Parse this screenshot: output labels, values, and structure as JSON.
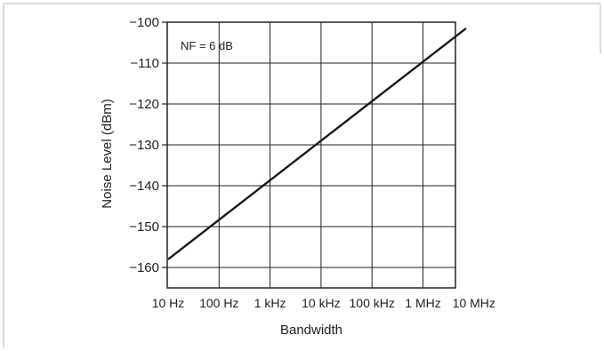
{
  "chart_data": {
    "type": "line",
    "xlabel": "Bandwidth",
    "ylabel": "Noise Level (dBm)",
    "annotation": "NF = 6 dB",
    "x_scale": "log",
    "x_ticks": [
      "10 Hz",
      "100 Hz",
      "1 kHz",
      "10 kHz",
      "100 kHz",
      "1 MHz",
      "10 MHz"
    ],
    "y_ticks": [
      -100,
      -110,
      -120,
      -130,
      -140,
      -150,
      -160
    ],
    "ylim": [
      -165,
      -100
    ],
    "grid": true,
    "series": [
      {
        "x": [
          "10 Hz",
          "7 MHz"
        ],
        "y": [
          -158,
          -101.5
        ]
      }
    ],
    "colors": {
      "line": "#1a1a1a",
      "grid": "#222222",
      "frame": "#bbbbbb"
    }
  }
}
